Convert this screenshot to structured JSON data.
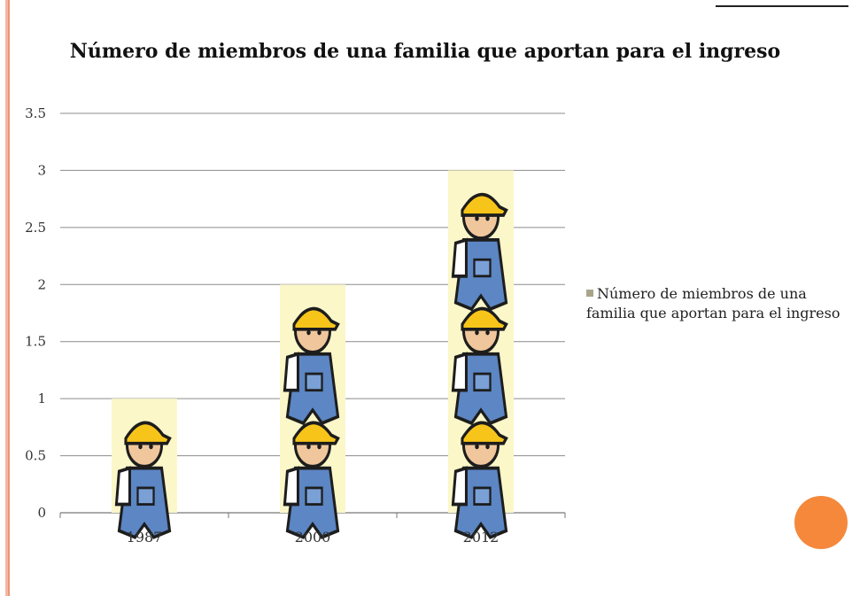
{
  "chart_data": {
    "type": "bar",
    "title": "Número de miembros de una familia que aportan para el ingreso",
    "categories": [
      "1987",
      "2000",
      "2012"
    ],
    "series": [
      {
        "name": "Número de miembros de una familia que aportan para el ingreso",
        "values": [
          1,
          2,
          3
        ]
      }
    ],
    "ylim": [
      0,
      3.5
    ],
    "yticks": [
      "0",
      "0.5",
      "1",
      "1.5",
      "2",
      "2.5",
      "3",
      "3.5"
    ],
    "grid": true,
    "legend_position": "right",
    "bar_fill": "picture-stack (worker icon)",
    "bar_background_color": "#fbf7c9"
  },
  "colors": {
    "accent_orange": "#f5883b",
    "left_border": "#f3b8a4",
    "gridline": "#8c8c8c"
  }
}
